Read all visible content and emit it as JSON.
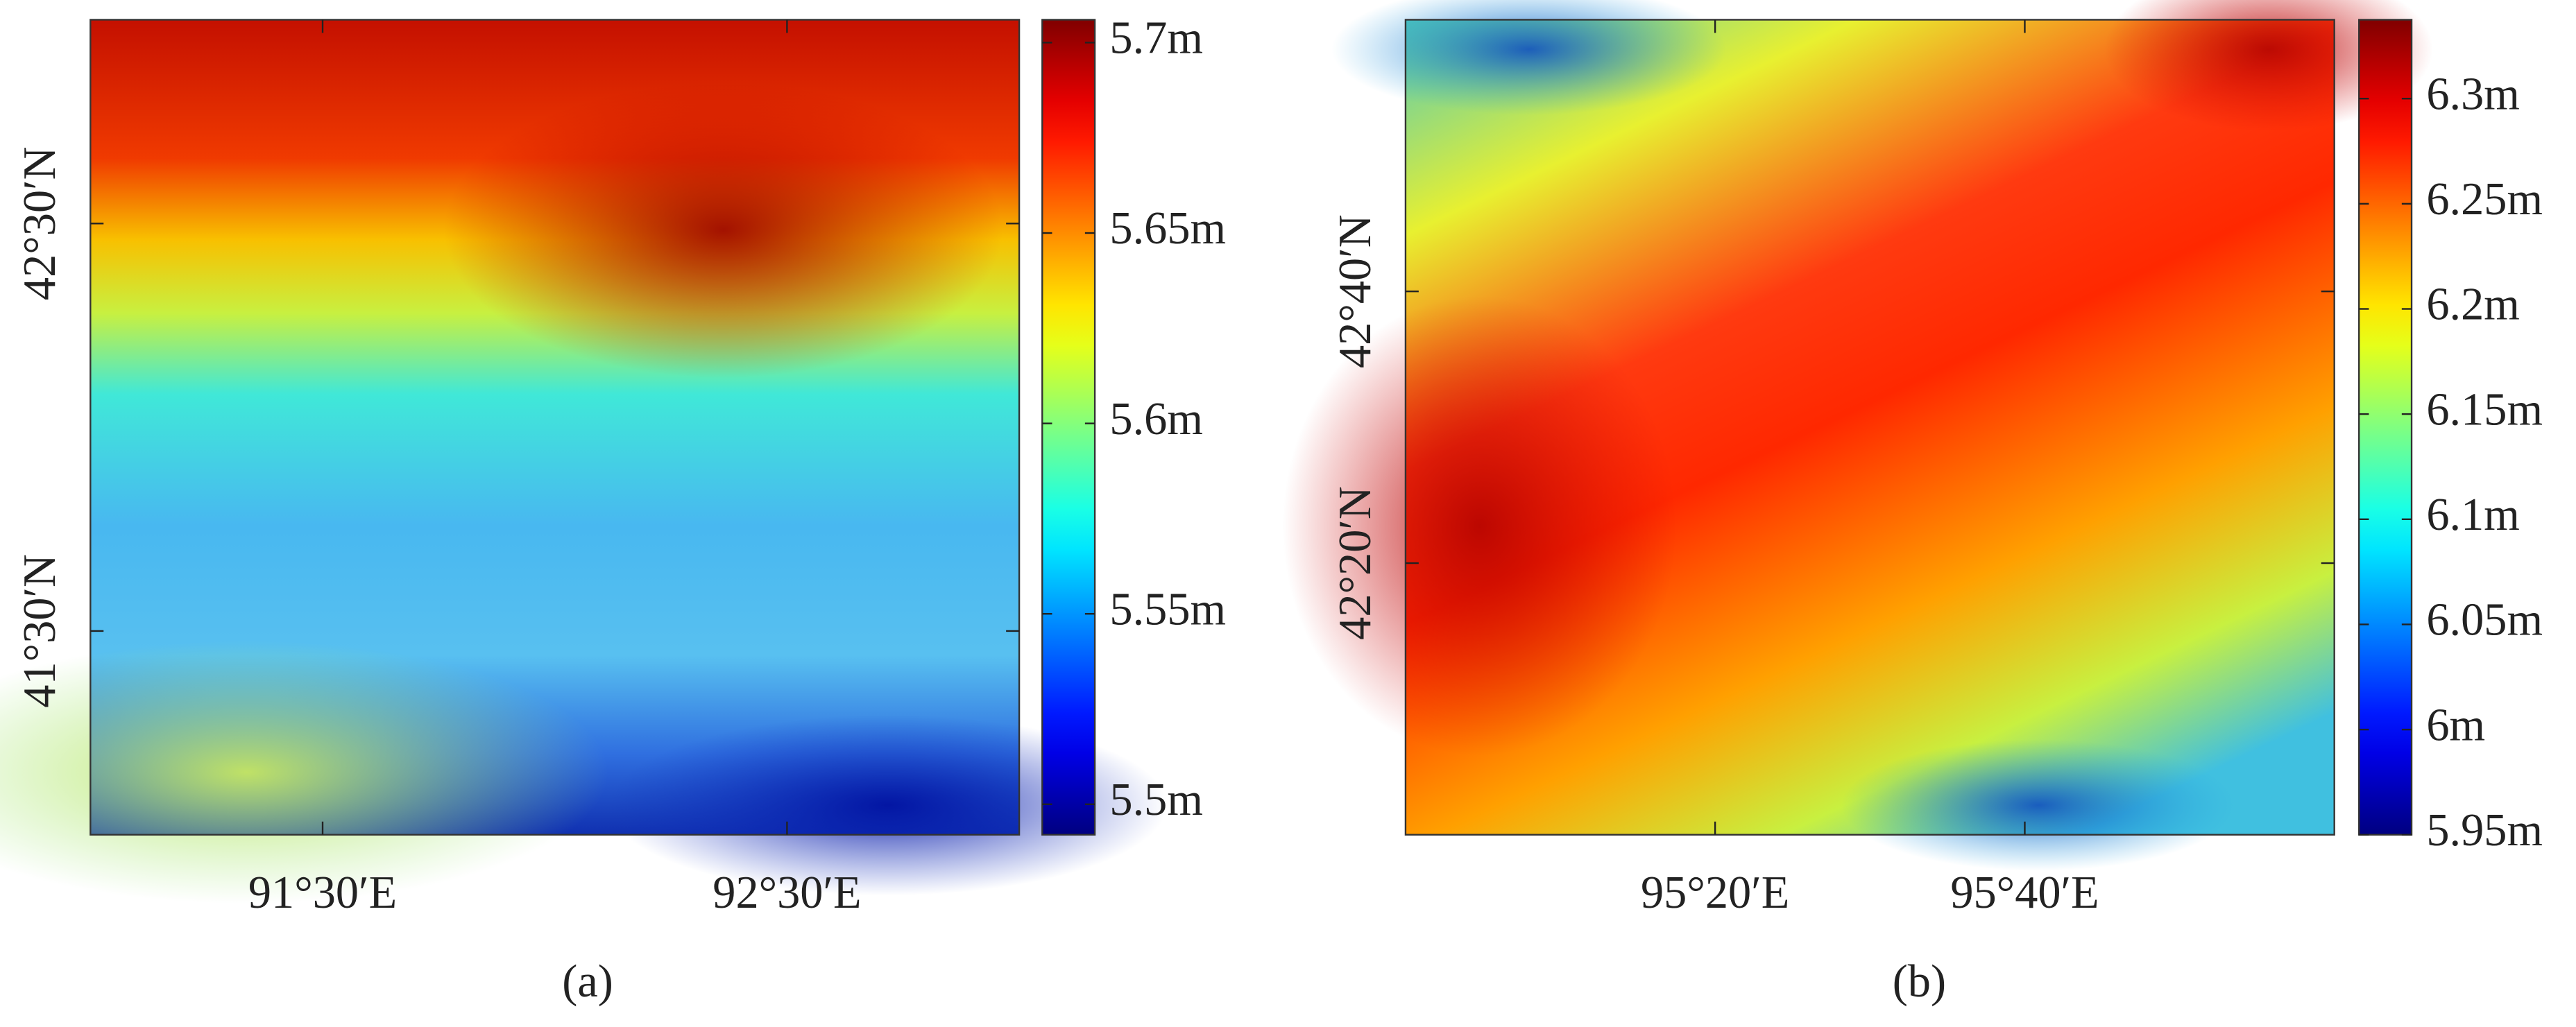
{
  "chart_data": [
    {
      "type": "map",
      "caption": "(a)",
      "xlim": [
        91.0,
        93.0
      ],
      "xticks": [
        {
          "value": 91.5,
          "label": "91°30′E"
        },
        {
          "value": 92.5,
          "label": "92°30′E"
        }
      ],
      "ylim": [
        41.0,
        43.0
      ],
      "yticks": [
        {
          "value": 41.5,
          "label": "41°30′N"
        },
        {
          "value": 42.5,
          "label": "42°30′N"
        }
      ],
      "colorbar": {
        "colormap": "jet",
        "clim": [
          5.492,
          5.706
        ],
        "ticks": [
          {
            "value": 5.5,
            "label": "5.5m"
          },
          {
            "value": 5.55,
            "label": "5.55m"
          },
          {
            "value": 5.6,
            "label": "5.6m"
          },
          {
            "value": 5.65,
            "label": "5.65m"
          },
          {
            "value": 5.7,
            "label": "5.7m"
          }
        ]
      }
    },
    {
      "type": "map",
      "caption": "(b)",
      "xlim": [
        95.0,
        96.0
      ],
      "xticks": [
        {
          "value": 95.3333,
          "label": "95°20′E"
        },
        {
          "value": 95.6667,
          "label": "95°40′E"
        }
      ],
      "ylim": [
        42.0,
        43.0
      ],
      "yticks": [
        {
          "value": 42.3333,
          "label": "42°20′N"
        },
        {
          "value": 42.6667,
          "label": "42°40′N"
        }
      ],
      "colorbar": {
        "colormap": "jet",
        "clim": [
          5.95,
          6.3375
        ],
        "ticks": [
          {
            "value": 5.95,
            "label": "5.95m"
          },
          {
            "value": 6.0,
            "label": "6m"
          },
          {
            "value": 6.05,
            "label": "6.05m"
          },
          {
            "value": 6.1,
            "label": "6.1m"
          },
          {
            "value": 6.15,
            "label": "6.15m"
          },
          {
            "value": 6.2,
            "label": "6.2m"
          },
          {
            "value": 6.25,
            "label": "6.25m"
          },
          {
            "value": 6.3,
            "label": "6.3m"
          }
        ]
      }
    }
  ]
}
